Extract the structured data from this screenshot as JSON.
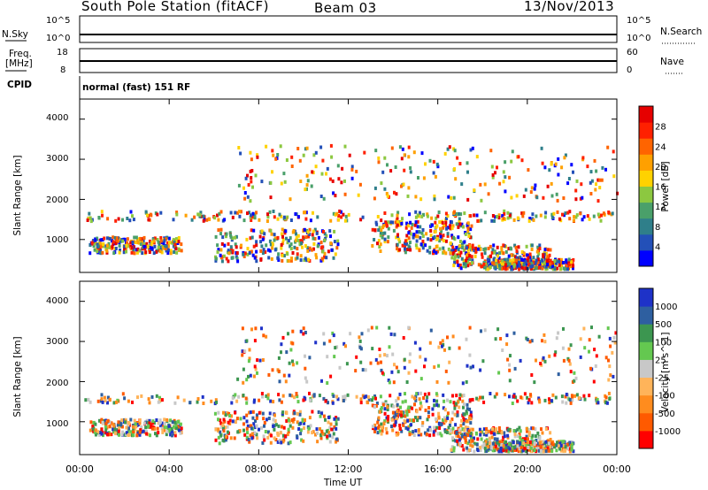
{
  "header": {
    "station": "South Pole Station (fitACF)",
    "beam": "Beam 03",
    "date": "13/Nov/2013"
  },
  "panels": {
    "nsky_label": "N.Sky",
    "nsky_ticks": [
      "10^5",
      "10^0"
    ],
    "nsearch_label": "N.Search",
    "nsearch_ticks": [
      "10^5",
      "10^0"
    ],
    "freq_label_1": "Freq.",
    "freq_label_2": "[MHz]",
    "freq_ticks": [
      "18",
      "8"
    ],
    "nave_label": "Nave",
    "nave_ticks": [
      "60",
      "0"
    ],
    "cpid_label": "CPID",
    "cpid_value": "normal (fast) 151 RF"
  },
  "chart_data": [
    {
      "type": "heatmap",
      "name": "power",
      "ylabel": "Slant Range [km]",
      "xlabel": "Time UT",
      "x_ticks": [
        "00:00",
        "04:00",
        "08:00",
        "12:00",
        "16:00",
        "20:00",
        "00:00"
      ],
      "y_ticks": [
        "1000",
        "2000",
        "3000",
        "4000"
      ],
      "xlim_hours": [
        0,
        24
      ],
      "ylim_km": [
        180,
        4500
      ],
      "colorbar_label": "Power [dB]",
      "colorbar_ticks": [
        "28",
        "24",
        "20",
        "16",
        "12",
        "8",
        "4"
      ],
      "colorbar_colors": [
        "#0000ff",
        "#2350b8",
        "#2f7f8a",
        "#4aa06a",
        "#8cc840",
        "#ffd200",
        "#ffa000",
        "#ff6400",
        "#ff2000",
        "#e60000"
      ]
    },
    {
      "type": "heatmap",
      "name": "velocity",
      "ylabel": "Slant Range [km]",
      "xlabel": "Time UT",
      "x_ticks": [
        "00:00",
        "04:00",
        "08:00",
        "12:00",
        "16:00",
        "20:00",
        "00:00"
      ],
      "y_ticks": [
        "1000",
        "2000",
        "3000",
        "4000"
      ],
      "xlim_hours": [
        0,
        24
      ],
      "ylim_km": [
        180,
        4500
      ],
      "colorbar_label": "Velocity [m s^-1]",
      "colorbar_ticks": [
        "1000",
        "500",
        "100",
        "25",
        "-25",
        "-100",
        "-500",
        "-1000"
      ],
      "colorbar_colors": [
        "#ff0000",
        "#ff5a00",
        "#ff8c1e",
        "#ffb45a",
        "#c8c8c8",
        "#64c850",
        "#3c9650",
        "#2e5fa0",
        "#1e32c8"
      ]
    }
  ]
}
